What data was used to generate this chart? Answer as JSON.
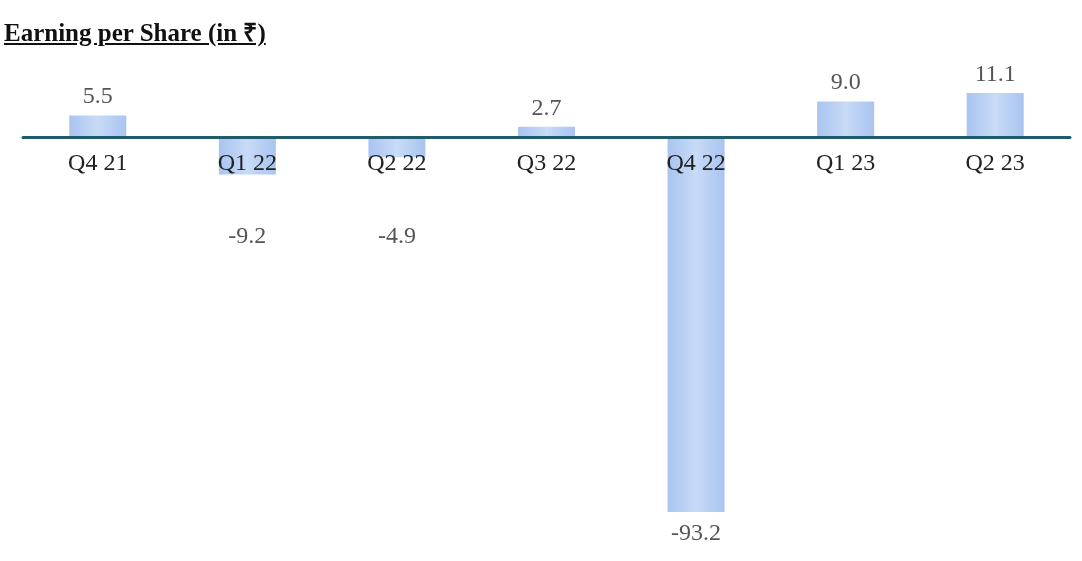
{
  "chart_data": {
    "type": "bar",
    "title": "Earning per Share (in ₹)",
    "categories": [
      "Q4 21",
      "Q1 22",
      "Q2 22",
      "Q3 22",
      "Q4 22",
      "Q1 23",
      "Q2 23"
    ],
    "values": [
      5.5,
      -9.2,
      -4.9,
      2.7,
      -93.2,
      9.0,
      11.1
    ],
    "value_labels": [
      "5.5",
      "-9.2",
      "-4.9",
      "2.7",
      "-93.2",
      "9.0",
      "11.1"
    ],
    "color": "#a9c4f0"
  }
}
